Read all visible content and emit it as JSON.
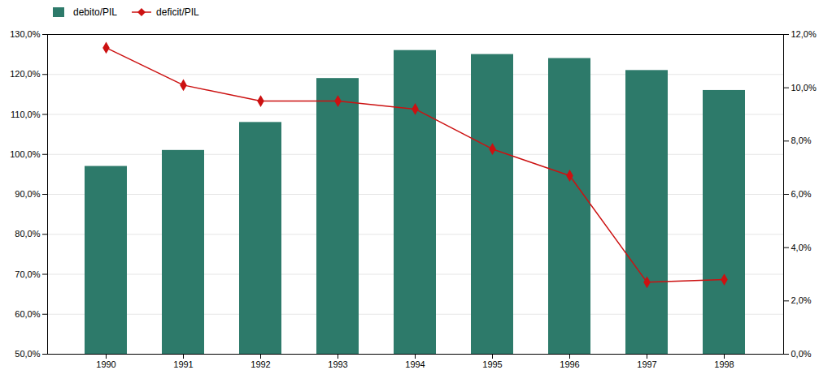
{
  "chart_data": {
    "type": "bar",
    "categories": [
      "1990",
      "1991",
      "1992",
      "1993",
      "1994",
      "1995",
      "1996",
      "1997",
      "1998"
    ],
    "series": [
      {
        "name": "debito/PIL",
        "type": "bar",
        "color": "#2d7a6a",
        "values": [
          97.0,
          101.0,
          108.0,
          119.0,
          126.0,
          125.0,
          124.0,
          121.0,
          116.0
        ]
      },
      {
        "name": "deficit/PIL",
        "type": "line",
        "axis": "y2",
        "color": "#cc1111",
        "marker": "diamond",
        "values": [
          11.5,
          10.1,
          9.5,
          9.5,
          9.2,
          7.7,
          6.7,
          2.7,
          2.8
        ]
      }
    ],
    "ylim": [
      50.0,
      130.0
    ],
    "yticks": [
      {
        "value": 50,
        "label": "50,0%"
      },
      {
        "value": 60,
        "label": "60,0%"
      },
      {
        "value": 70,
        "label": "70,0%"
      },
      {
        "value": 80,
        "label": "80,0%"
      },
      {
        "value": 90,
        "label": "90,0%"
      },
      {
        "value": 100,
        "label": "100,0%"
      },
      {
        "value": 110,
        "label": "110,0%"
      },
      {
        "value": 120,
        "label": "120,0%"
      },
      {
        "value": 130,
        "label": "130,0%"
      }
    ],
    "y2lim": [
      0.0,
      12.0
    ],
    "y2ticks": [
      {
        "value": 0,
        "label": "0,0%"
      },
      {
        "value": 2,
        "label": "2,0%"
      },
      {
        "value": 4,
        "label": "4,0%"
      },
      {
        "value": 6,
        "label": "6,0%"
      },
      {
        "value": 8,
        "label": "8,0%"
      },
      {
        "value": 10,
        "label": "10,0%"
      },
      {
        "value": 12,
        "label": "12,0%"
      }
    ],
    "grid": true,
    "legend": "upper left"
  }
}
